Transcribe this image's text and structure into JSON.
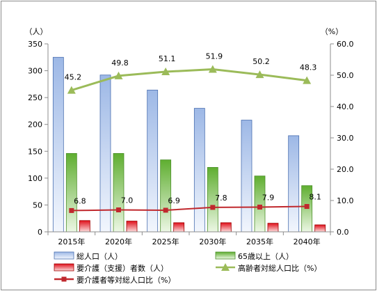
{
  "chart_data": {
    "type": "bar",
    "categories": [
      "2015年",
      "2020年",
      "2025年",
      "2030年",
      "2035年",
      "2040年"
    ],
    "y_left": {
      "unit": "（人）",
      "min": 0,
      "max": 350,
      "step": 50,
      "ticks": [
        "0",
        "50",
        "100",
        "150",
        "200",
        "250",
        "300",
        "350"
      ]
    },
    "y_right": {
      "unit": "（%）",
      "min": 0,
      "max": 60,
      "step": 10,
      "ticks": [
        "0.0",
        "10.0",
        "20.0",
        "30.0",
        "40.0",
        "50.0",
        "60.0"
      ]
    },
    "grid": false,
    "legend_position": "bottom",
    "series": [
      {
        "name": "総人口（人）",
        "type": "bar",
        "axis": "left",
        "values": [
          325,
          292,
          264,
          230,
          208,
          179
        ],
        "color": "#9db8e6",
        "color_light": "#f2f6fd",
        "edge": "#4a6fb0"
      },
      {
        "name": "65歳以上（人）",
        "type": "bar",
        "axis": "left",
        "values": [
          146,
          146,
          134,
          120,
          104,
          86
        ],
        "color": "#5fae30",
        "color_light": "#ecf7e4",
        "edge": "#4b8f2a"
      },
      {
        "name": "要介護（支援）者数（人）",
        "type": "bar",
        "axis": "left",
        "values": [
          21,
          20,
          17,
          17,
          16,
          13
        ],
        "color": "#e0101b",
        "color_light": "#fbdada",
        "edge": "#a00000"
      },
      {
        "name": "高齢者対総人口比（%）",
        "type": "line",
        "axis": "right",
        "values": [
          45.2,
          49.8,
          51.1,
          51.9,
          50.2,
          48.3
        ],
        "labels": [
          "45.2",
          "49.8",
          "51.1",
          "51.9",
          "50.2",
          "48.3"
        ],
        "color": "#9bbb59",
        "marker": "triangle"
      },
      {
        "name": "要介護者等対総人口比（%）",
        "type": "line",
        "axis": "right",
        "values": [
          6.8,
          7.0,
          6.9,
          7.8,
          7.9,
          8.1
        ],
        "labels": [
          "6.8",
          "7.0",
          "6.9",
          "7.8",
          "7.9",
          "8.1"
        ],
        "color": "#c0282d",
        "marker": "square"
      }
    ]
  }
}
